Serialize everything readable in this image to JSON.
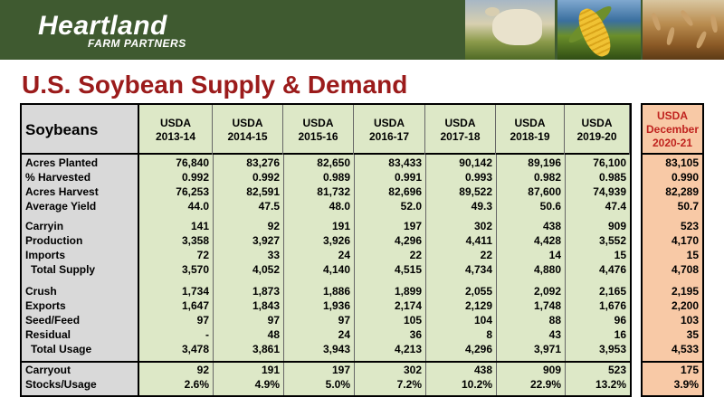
{
  "brand": {
    "name": "Heartland",
    "tagline": "FARM PARTNERS"
  },
  "title": "U.S. Soybean Supply & Demand",
  "table": {
    "corner_label": "Soybeans",
    "columns": [
      {
        "line1": "USDA",
        "line2": "2013-14"
      },
      {
        "line1": "USDA",
        "line2": "2014-15"
      },
      {
        "line1": "USDA",
        "line2": "2015-16"
      },
      {
        "line1": "USDA",
        "line2": "2016-17"
      },
      {
        "line1": "USDA",
        "line2": "2017-18"
      },
      {
        "line1": "USDA",
        "line2": "2018-19"
      },
      {
        "line1": "USDA",
        "line2": "2019-20"
      }
    ],
    "rows": [
      {
        "label": "Acres Planted",
        "values": [
          "76,840",
          "83,276",
          "82,650",
          "83,433",
          "90,142",
          "89,196",
          "76,100"
        ]
      },
      {
        "label": "% Harvested",
        "values": [
          "0.992",
          "0.992",
          "0.989",
          "0.991",
          "0.993",
          "0.982",
          "0.985"
        ]
      },
      {
        "label": "Acres Harvest",
        "values": [
          "76,253",
          "82,591",
          "81,732",
          "82,696",
          "89,522",
          "87,600",
          "74,939"
        ]
      },
      {
        "label": "Average Yield",
        "values": [
          "44.0",
          "47.5",
          "48.0",
          "52.0",
          "49.3",
          "50.6",
          "47.4"
        ]
      },
      {
        "label": "Carryin",
        "values": [
          "141",
          "92",
          "191",
          "197",
          "302",
          "438",
          "909"
        ]
      },
      {
        "label": "Production",
        "values": [
          "3,358",
          "3,927",
          "3,926",
          "4,296",
          "4,411",
          "4,428",
          "3,552"
        ]
      },
      {
        "label": "Imports",
        "values": [
          "72",
          "33",
          "24",
          "22",
          "22",
          "14",
          "15"
        ]
      },
      {
        "label": "Total Supply",
        "values": [
          "3,570",
          "4,052",
          "4,140",
          "4,515",
          "4,734",
          "4,880",
          "4,476"
        ]
      },
      {
        "label": "Crush",
        "values": [
          "1,734",
          "1,873",
          "1,886",
          "1,899",
          "2,055",
          "2,092",
          "2,165"
        ]
      },
      {
        "label": "Exports",
        "values": [
          "1,647",
          "1,843",
          "1,936",
          "2,174",
          "2,129",
          "1,748",
          "1,676"
        ]
      },
      {
        "label": "Seed/Feed",
        "values": [
          "97",
          "97",
          "97",
          "105",
          "104",
          "88",
          "96"
        ]
      },
      {
        "label": "Residual",
        "values": [
          "-",
          "48",
          "24",
          "36",
          "8",
          "43",
          "16"
        ]
      },
      {
        "label": "Total Usage",
        "values": [
          "3,478",
          "3,861",
          "3,943",
          "4,213",
          "4,296",
          "3,971",
          "3,953"
        ]
      },
      {
        "label": "Carryout",
        "values": [
          "92",
          "191",
          "197",
          "302",
          "438",
          "909",
          "523"
        ]
      },
      {
        "label": "Stocks/Usage",
        "values": [
          "2.6%",
          "4.9%",
          "5.0%",
          "7.2%",
          "10.2%",
          "22.9%",
          "13.2%"
        ]
      }
    ]
  },
  "december": {
    "line1": "USDA",
    "line2": "December",
    "line3": "2020-21",
    "values": [
      "83,105",
      "0.990",
      "82,289",
      "50.7",
      "523",
      "4,170",
      "15",
      "4,708",
      "2,195",
      "2,200",
      "103",
      "35",
      "4,533",
      "175",
      "3.9%"
    ]
  },
  "colors": {
    "banner": "#3f5a30",
    "title": "#9b1b1b",
    "table_bg": "#dde8c7",
    "label_bg": "#d9d9d9",
    "december_bg": "#f8c9a6",
    "december_header": "#c0231f"
  }
}
